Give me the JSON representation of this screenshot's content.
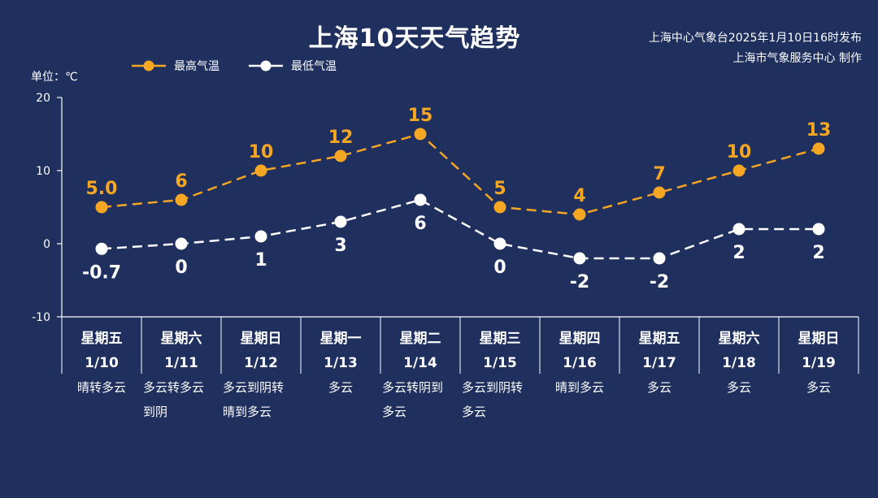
{
  "title": "上海10天天气趋势",
  "credit_line1": "上海中心气象台2025年1月10日16时发布",
  "credit_line2": "上海市气象服务中心 制作",
  "unit_label": "单位：℃",
  "colors": {
    "background": "#1f2f5e",
    "high": "#f5a623",
    "low": "#ffffff",
    "axis": "#ffffff"
  },
  "chart_data": {
    "type": "line",
    "ylim": [
      -10,
      20
    ],
    "yticks": [
      20,
      10,
      0,
      -10
    ],
    "legend_position": "top-left",
    "grid": false,
    "categories": [
      {
        "weekday": "星期五",
        "date": "1/10",
        "weather": [
          "晴转多云"
        ]
      },
      {
        "weekday": "星期六",
        "date": "1/11",
        "weather": [
          "多云转多云",
          "到阴"
        ]
      },
      {
        "weekday": "星期日",
        "date": "1/12",
        "weather": [
          "多云到阴转",
          "晴到多云"
        ]
      },
      {
        "weekday": "星期一",
        "date": "1/13",
        "weather": [
          "多云"
        ]
      },
      {
        "weekday": "星期二",
        "date": "1/14",
        "weather": [
          "多云转阴到",
          "多云"
        ]
      },
      {
        "weekday": "星期三",
        "date": "1/15",
        "weather": [
          "多云到阴转",
          "多云"
        ]
      },
      {
        "weekday": "星期四",
        "date": "1/16",
        "weather": [
          "晴到多云"
        ]
      },
      {
        "weekday": "星期五",
        "date": "1/17",
        "weather": [
          "多云"
        ]
      },
      {
        "weekday": "星期六",
        "date": "1/18",
        "weather": [
          "多云"
        ]
      },
      {
        "weekday": "星期日",
        "date": "1/19",
        "weather": [
          "多云"
        ]
      }
    ],
    "series": [
      {
        "name": "最高气温",
        "values": [
          5.0,
          6,
          10,
          12,
          15,
          5,
          4,
          7,
          10,
          13
        ],
        "labels": [
          "5.0",
          "6",
          "10",
          "12",
          "15",
          "5",
          "4",
          "7",
          "10",
          "13"
        ]
      },
      {
        "name": "最低气温",
        "values": [
          -0.7,
          0,
          1,
          3,
          6,
          0,
          -2,
          -2,
          2,
          2
        ],
        "labels": [
          "-0.7",
          "0",
          "1",
          "3",
          "6",
          "0",
          "-2",
          "-2",
          "2",
          "2"
        ]
      }
    ]
  }
}
